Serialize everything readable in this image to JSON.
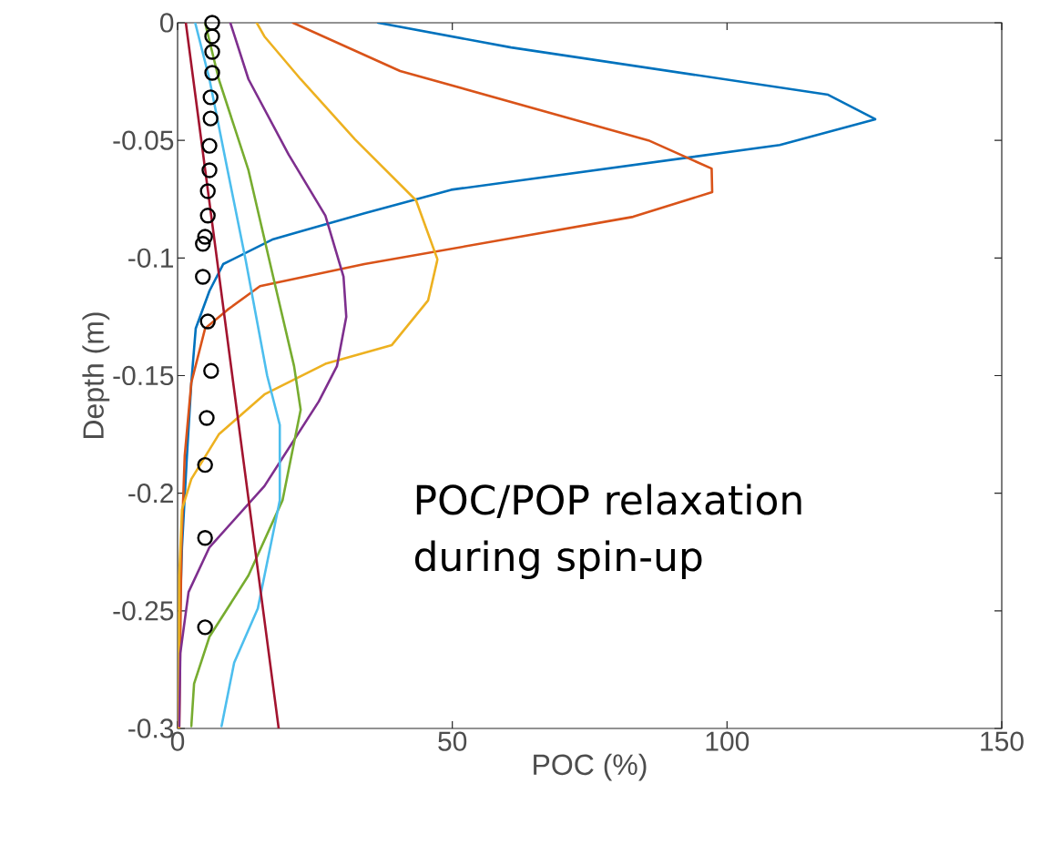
{
  "chart_data": {
    "type": "line",
    "xlabel": "POC (%)",
    "ylabel": "Depth (m)",
    "xlim": [
      0,
      150
    ],
    "ylim": [
      -0.3,
      0
    ],
    "xticks": [
      0,
      50,
      100,
      150
    ],
    "yticks": [
      -0.3,
      -0.25,
      -0.2,
      -0.15,
      -0.1,
      -0.05,
      0
    ],
    "grid": false,
    "line_style": "solid",
    "annotations": [
      "POC/POP relaxation during spin-up"
    ],
    "series": [
      {
        "color": "#0072bd",
        "x": [
          36.5,
          60.7,
          118.4,
          127,
          109.6,
          49.8,
          34,
          17.4,
          8.3,
          5.8,
          3.3,
          2.5,
          1.7,
          0.8,
          0.3,
          0.2
        ],
        "values": [
          0,
          -0.0105,
          -0.0306,
          -0.041,
          -0.052,
          -0.071,
          -0.081,
          -0.092,
          -0.1026,
          -0.114,
          -0.13,
          -0.153,
          -0.184,
          -0.223,
          -0.261,
          -0.3
        ]
      },
      {
        "color": "#d95319",
        "x": [
          21,
          40.5,
          85.7,
          97.2,
          97.3,
          82.9,
          34,
          15,
          9.1,
          5,
          2.5,
          1.3,
          0.7,
          0.3
        ],
        "values": [
          0,
          -0.0205,
          -0.05,
          -0.062,
          -0.072,
          -0.0825,
          -0.1026,
          -0.112,
          -0.122,
          -0.13,
          -0.153,
          -0.184,
          -0.223,
          -0.3
        ]
      },
      {
        "color": "#edb120",
        "x": [
          14.4,
          15.8,
          22.4,
          32.3,
          43.4,
          47.3,
          45.6,
          39,
          26.9,
          15.8,
          7.5,
          2.5,
          0.8,
          0.3,
          0.2
        ],
        "values": [
          0,
          -0.0058,
          -0.024,
          -0.0496,
          -0.0755,
          -0.1006,
          -0.118,
          -0.137,
          -0.145,
          -0.158,
          -0.175,
          -0.194,
          -0.207,
          -0.235,
          -0.3
        ]
      },
      {
        "color": "#7e2f8e",
        "x": [
          9.6,
          12.9,
          20.2,
          26.9,
          30.2,
          30.7,
          29,
          25.7,
          15.8,
          5.8,
          2,
          0.5,
          0.3
        ],
        "values": [
          0,
          -0.024,
          -0.056,
          -0.082,
          -0.108,
          -0.125,
          -0.146,
          -0.161,
          -0.197,
          -0.223,
          -0.242,
          -0.268,
          -0.299
        ]
      },
      {
        "color": "#77ac30",
        "x": [
          5,
          7.5,
          12.9,
          17.4,
          21.2,
          22.4,
          19.1,
          12.9,
          5.8,
          3,
          2.5
        ],
        "values": [
          0,
          -0.024,
          -0.0627,
          -0.108,
          -0.146,
          -0.1645,
          -0.203,
          -0.235,
          -0.261,
          -0.281,
          -0.299
        ]
      },
      {
        "color": "#4dbeee",
        "x": [
          3.2,
          5.8,
          9.1,
          12.4,
          16.3,
          18.6,
          18.6,
          14.6,
          10.3,
          8
        ],
        "values": [
          0,
          -0.024,
          -0.0627,
          -0.101,
          -0.15,
          -0.171,
          -0.203,
          -0.249,
          -0.272,
          -0.299
        ]
      },
      {
        "color": "#a2142f",
        "x": [
          1.5,
          18.4
        ],
        "values": [
          0,
          -0.3
        ]
      },
      {
        "type": "scatter",
        "marker": "circle",
        "color": "#000000",
        "x": [
          6.3,
          6.3,
          6.3,
          6.3,
          6,
          6,
          5.8,
          5.8,
          5.5,
          5.5,
          5,
          4.6,
          4.6,
          5.5,
          6.1,
          5.3,
          5,
          5,
          5
        ],
        "values": [
          0,
          -0.0058,
          -0.0124,
          -0.0213,
          -0.0317,
          -0.0407,
          -0.0523,
          -0.0627,
          -0.0716,
          -0.082,
          -0.091,
          -0.094,
          -0.108,
          -0.127,
          -0.148,
          -0.168,
          -0.188,
          -0.219,
          -0.257
        ]
      }
    ]
  }
}
